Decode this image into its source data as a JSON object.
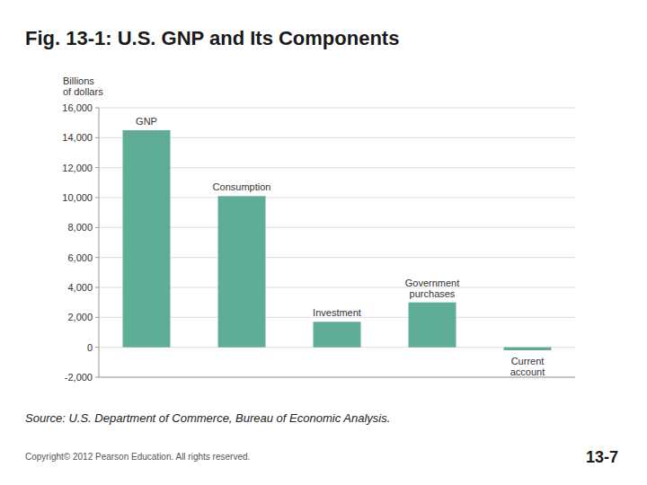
{
  "chart_data": {
    "type": "bar",
    "title": "Fig. 13-1: U.S. GNP and Its Components",
    "y_label": "Billions\nof dollars",
    "categories": [
      "GNP",
      "Consumption",
      "Investment",
      "Government\npurchases",
      "Current\naccount"
    ],
    "values": [
      14500,
      10100,
      1700,
      3000,
      -200
    ],
    "color": "#5fad97",
    "ylim": [
      -2000,
      16000
    ],
    "yticks": [
      {
        "value": -2000,
        "label": "-2,000"
      },
      0,
      {
        "value": 2000,
        "label": "2,000"
      },
      {
        "value": 4000,
        "label": "4,000"
      },
      {
        "value": 6000,
        "label": "6,000"
      },
      {
        "value": 8000,
        "label": "8,000"
      },
      {
        "value": 10000,
        "label": "10,000"
      },
      {
        "value": 12000,
        "label": "12,000"
      },
      {
        "value": 14000,
        "label": "14,000"
      },
      {
        "value": 16000,
        "label": "16,000"
      }
    ],
    "grid": true,
    "tick_labels": "y",
    "source": "Source:  U.S. Department of Commerce, Bureau of Economic Analysis.",
    "copyright": "Copyright© 2012 Pearson Education. All rights reserved.",
    "page_label": "13-7"
  }
}
